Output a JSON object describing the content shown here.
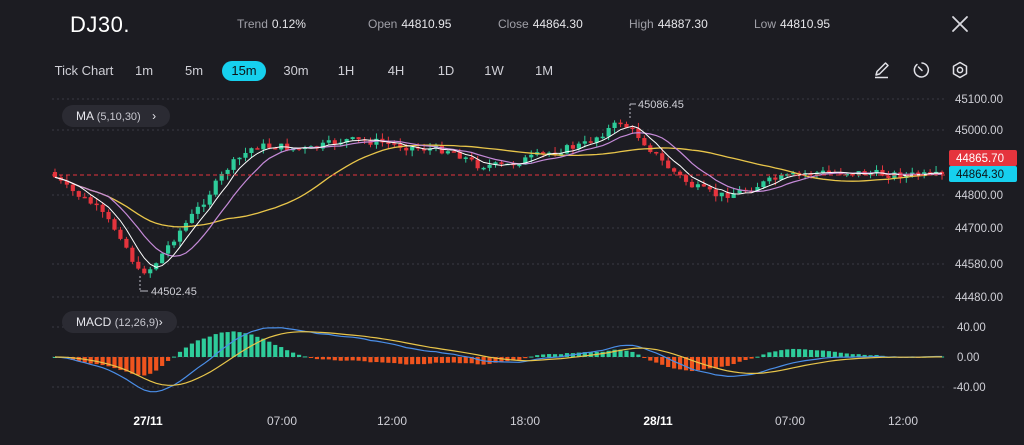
{
  "header": {
    "symbol": "DJ30.",
    "trend_label": "Trend",
    "trend_value": "0.12%",
    "open_label": "Open",
    "open_value": "44810.95",
    "close_label": "Close",
    "close_value": "44864.30",
    "high_label": "High",
    "high_value": "44887.30",
    "low_label": "Low",
    "low_value": "44810.95",
    "close_icon": "close-icon"
  },
  "toolbar": {
    "tick_chart_label": "Tick Chart",
    "timeframes": [
      "1m",
      "5m",
      "15m",
      "30m",
      "1H",
      "4H",
      "1D",
      "1W",
      "1M"
    ],
    "active_timeframe": "15m",
    "tools": [
      "pencil-icon",
      "timer-icon",
      "settings-icon"
    ]
  },
  "indicators": {
    "ma_label": "MA",
    "ma_params": "(5,10,30)",
    "macd_label": "MACD",
    "macd_params": "(12,26,9)"
  },
  "price_axis": {
    "ticks": [
      "45100.00",
      "45000.00",
      "44800.00",
      "44700.00",
      "44580.00",
      "44480.00"
    ],
    "tag_red": "44865.70",
    "tag_cyan": "44864.30"
  },
  "macd_axis": {
    "ticks": [
      "40.00",
      "0.00",
      "-40.00"
    ]
  },
  "time_axis": {
    "labels": [
      "27/11",
      "07:00",
      "12:00",
      "18:00",
      "28/11",
      "07:00",
      "12:00"
    ],
    "bold": [
      true,
      false,
      false,
      false,
      true,
      false,
      false
    ]
  },
  "annotations": {
    "high_mark": "45086.45",
    "low_mark": "44502.45"
  },
  "colors": {
    "background": "#1c1c22",
    "up": "#2ecc9a",
    "down": "#e5343d",
    "accent": "#16d0ee",
    "ma_fast": "#ffffff",
    "ma_mid": "#c58ad8",
    "ma_slow": "#e8c54a",
    "macd_line": "#4a8ee8",
    "signal_line": "#e8c54a",
    "hist_pos": "#2ecc9a",
    "hist_neg": "#f0541e"
  }
}
